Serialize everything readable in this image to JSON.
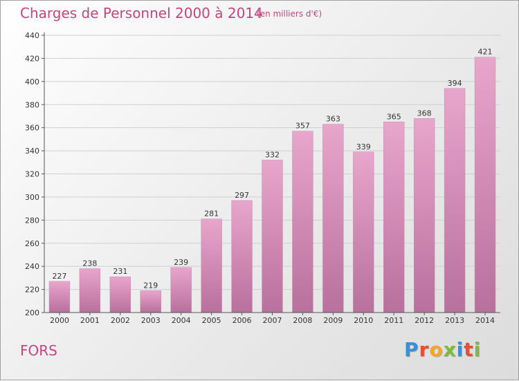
{
  "header": {
    "title": "Charges de Personnel 2000 à 2014",
    "subtitle": "(en milliers d'€)"
  },
  "footer": {
    "town": "FORS",
    "logo": "Proxiti"
  },
  "colors": {
    "bar_top": "#e8a6cc",
    "bar_bottom": "#b8709c",
    "title": "#c4457f"
  },
  "chart_data": {
    "type": "bar",
    "categories": [
      "2000",
      "2001",
      "2002",
      "2003",
      "2004",
      "2005",
      "2006",
      "2007",
      "2008",
      "2009",
      "2010",
      "2011",
      "2012",
      "2013",
      "2014"
    ],
    "values": [
      227,
      238,
      231,
      219,
      239,
      281,
      297,
      332,
      357,
      363,
      339,
      365,
      368,
      394,
      421
    ],
    "ylim": [
      200,
      440
    ],
    "yticks": [
      200,
      220,
      240,
      260,
      280,
      300,
      320,
      340,
      360,
      380,
      400,
      420,
      440
    ],
    "grid": true
  }
}
